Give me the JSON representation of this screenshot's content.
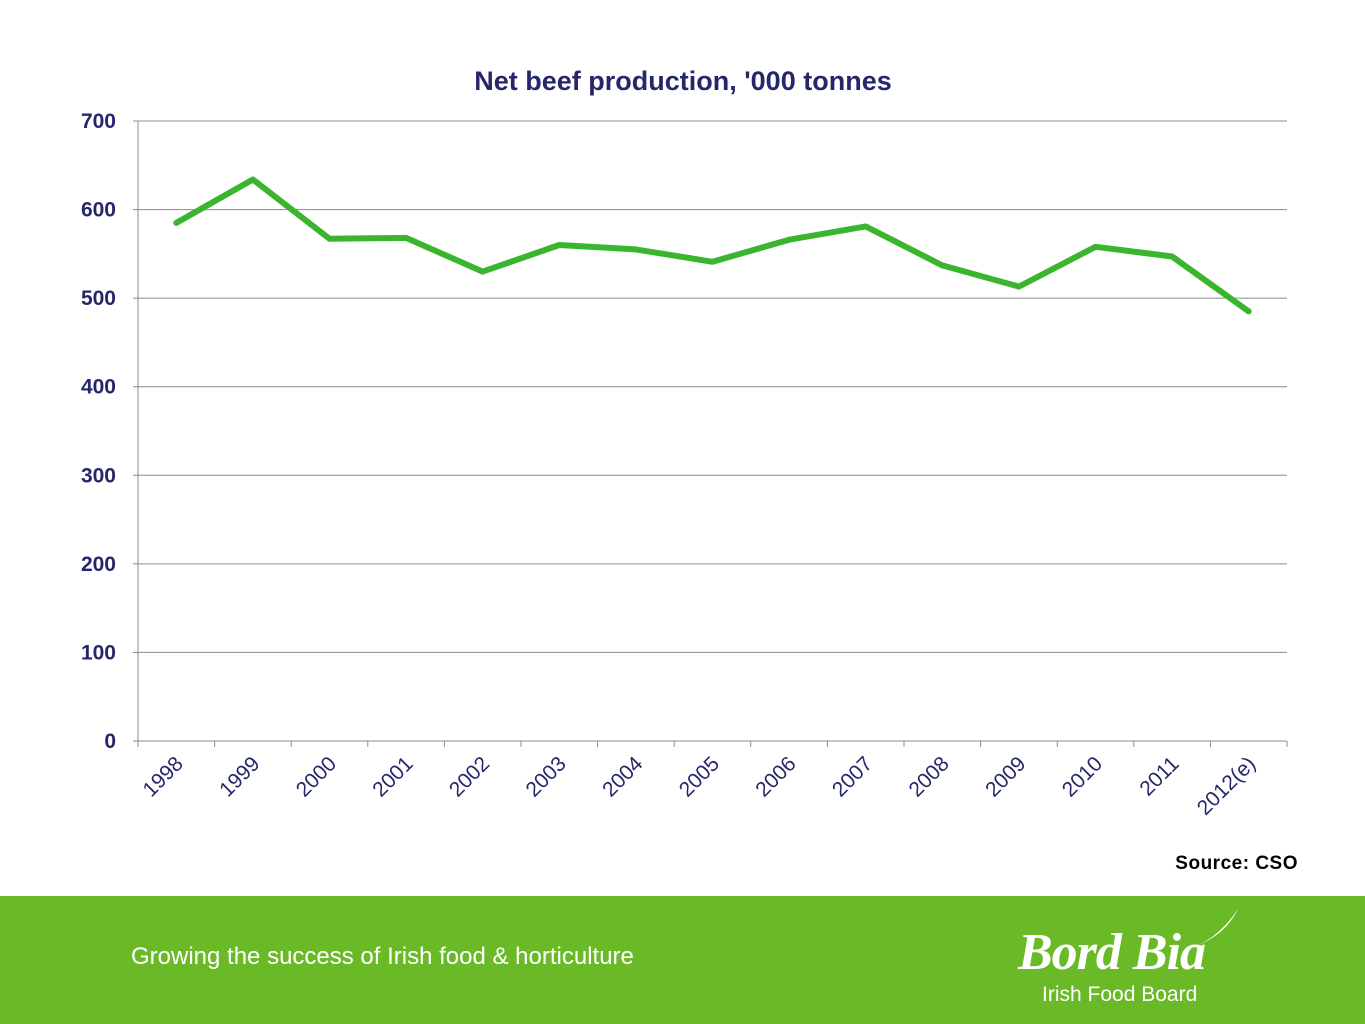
{
  "chart_data": {
    "type": "line",
    "title": "Net beef production, '000 tonnes",
    "categories": [
      "1998",
      "1999",
      "2000",
      "2001",
      "2002",
      "2003",
      "2004",
      "2005",
      "2006",
      "2007",
      "2008",
      "2009",
      "2010",
      "2011",
      "2012(e)"
    ],
    "series": [
      {
        "values": [
          585,
          634,
          567,
          568,
          530,
          560,
          555,
          541,
          566,
          581,
          537,
          513,
          558,
          547,
          485
        ]
      }
    ],
    "ylim": [
      0,
      700
    ],
    "yticks": [
      "0",
      "100",
      "200",
      "300",
      "400",
      "500",
      "600",
      "700"
    ],
    "grid": true,
    "line_color": "#3cb52e"
  },
  "source": "Source: CSO",
  "footer": {
    "tagline": "Growing the success of Irish food & horticulture",
    "logo_main": "Bord Bia",
    "logo_sub": "Irish Food Board",
    "color": "#6aba28"
  }
}
